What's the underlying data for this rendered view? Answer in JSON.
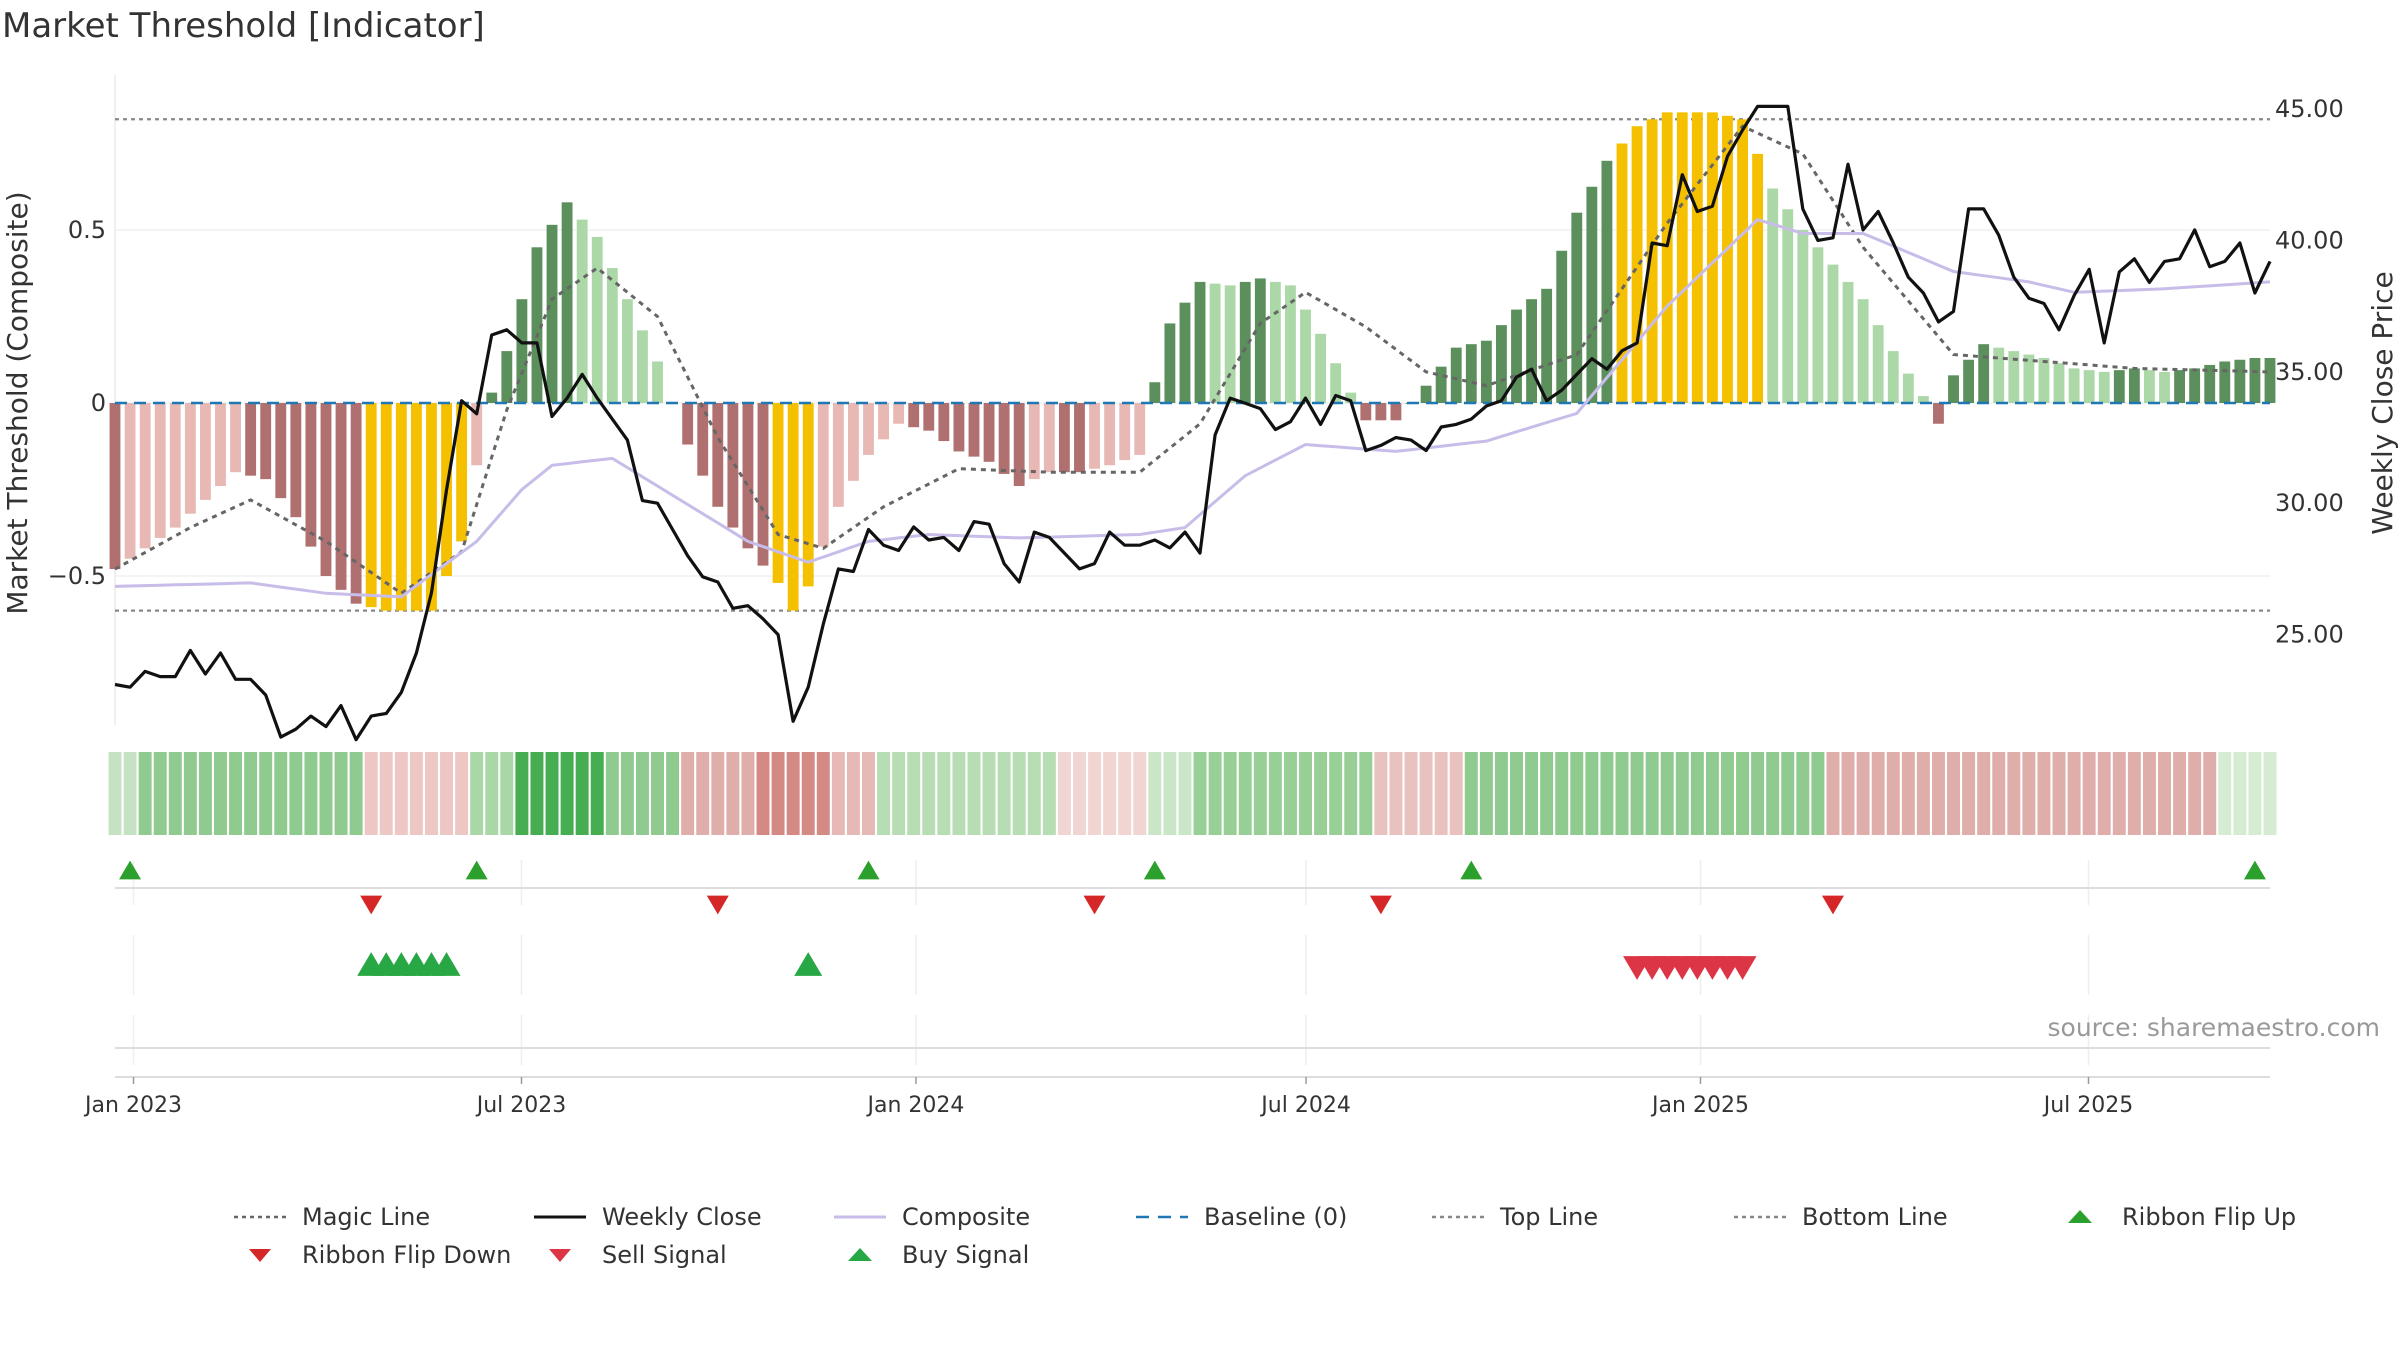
{
  "title": "Market Threshold [Indicator]",
  "source": "source: sharemaestro.com",
  "legend": [
    {
      "label": "Magic Line",
      "kind": "dotted-line",
      "color": "#666666"
    },
    {
      "label": "Weekly Close",
      "kind": "solid-line",
      "color": "#111111"
    },
    {
      "label": "Composite",
      "kind": "solid-line",
      "color": "#c8bde8"
    },
    {
      "label": "Baseline (0)",
      "kind": "dashed-line",
      "color": "#1f77b4"
    },
    {
      "label": "Top Line",
      "kind": "dotted-line",
      "color": "#888888"
    },
    {
      "label": "Bottom Line",
      "kind": "dotted-line",
      "color": "#888888"
    },
    {
      "label": "Ribbon Flip Up",
      "kind": "triangle-up",
      "color": "#2ca02c"
    },
    {
      "label": "Ribbon Flip Down",
      "kind": "triangle-down",
      "color": "#d62728"
    },
    {
      "label": "Sell Signal",
      "kind": "triangle-down",
      "color": "#dc3545"
    },
    {
      "label": "Buy Signal",
      "kind": "triangle-up",
      "color": "#28a745"
    }
  ],
  "colors": {
    "bull_dark": "#5b8f5b",
    "bull_light": "#acd8a8",
    "bear_dark": "#b07070",
    "bear_light": "#e8b9b4",
    "extreme": "#f5c000",
    "flip_up": "#2ca02c",
    "flip_down": "#d62728",
    "buy": "#28a745",
    "sell": "#dc3545",
    "weekly_close": "#111111",
    "composite": "#c8bde8",
    "magic": "#666666",
    "baseline": "#1f77b4"
  },
  "chart_data": {
    "type": "bar",
    "title": "Market Threshold [Indicator]",
    "ylabel_left": "Market Threshold (Composite)",
    "ylabel_right": "Weekly Close Price",
    "left_ylim": [
      -0.93,
      0.93
    ],
    "right_ylim": [
      21.0,
      46.5
    ],
    "left_ticks": [
      {
        "v": 0.5,
        "label": "0.5"
      },
      {
        "v": 0,
        "label": "0"
      },
      {
        "v": -0.5,
        "label": "−0.5"
      }
    ],
    "right_ticks": [
      {
        "v": 45,
        "label": "45.00"
      },
      {
        "v": 40,
        "label": "40.00"
      },
      {
        "v": 35,
        "label": "35.00"
      },
      {
        "v": 30,
        "label": "30.00"
      },
      {
        "v": 25,
        "label": "25.00"
      }
    ],
    "x_ticks": [
      {
        "date": "2023-01-01",
        "label": "Jan 2023"
      },
      {
        "date": "2023-07-01",
        "label": "Jul 2023"
      },
      {
        "date": "2024-01-01",
        "label": "Jan 2024"
      },
      {
        "date": "2024-07-01",
        "label": "Jul 2024"
      },
      {
        "date": "2025-01-01",
        "label": "Jan 2025"
      },
      {
        "date": "2025-07-01",
        "label": "Jul 2025"
      }
    ],
    "top_line": 0.82,
    "bottom_line": -0.6,
    "composite_bars_anchors": [
      [
        "2022-12-28",
        -0.48
      ],
      [
        "2023-01-11",
        -0.42
      ],
      [
        "2023-01-25",
        -0.36
      ],
      [
        "2023-02-08",
        -0.28
      ],
      [
        "2023-02-22",
        -0.2
      ],
      [
        "2023-03-08",
        -0.22
      ],
      [
        "2023-03-22",
        -0.33
      ],
      [
        "2023-04-05",
        -0.5
      ],
      [
        "2023-04-19",
        -0.58
      ],
      [
        "2023-05-03",
        -0.6
      ],
      [
        "2023-05-24",
        -0.6
      ],
      [
        "2023-06-07",
        -0.4
      ],
      [
        "2023-06-14",
        -0.18
      ],
      [
        "2023-06-21",
        0.03
      ],
      [
        "2023-06-28",
        0.15
      ],
      [
        "2023-07-12",
        0.45
      ],
      [
        "2023-07-26",
        0.58
      ],
      [
        "2023-08-09",
        0.48
      ],
      [
        "2023-08-23",
        0.3
      ],
      [
        "2023-09-06",
        0.12
      ],
      [
        "2023-09-13",
        0.0
      ],
      [
        "2023-09-20",
        -0.12
      ],
      [
        "2023-10-04",
        -0.3
      ],
      [
        "2023-10-18",
        -0.42
      ],
      [
        "2023-11-01",
        -0.52
      ],
      [
        "2023-11-08",
        -0.6
      ],
      [
        "2023-11-15",
        -0.53
      ],
      [
        "2023-11-29",
        -0.3
      ],
      [
        "2023-12-13",
        -0.15
      ],
      [
        "2023-12-27",
        -0.06
      ],
      [
        "2024-01-10",
        -0.08
      ],
      [
        "2024-01-24",
        -0.14
      ],
      [
        "2024-02-07",
        -0.17
      ],
      [
        "2024-02-21",
        -0.24
      ],
      [
        "2024-03-06",
        -0.2
      ],
      [
        "2024-03-20",
        -0.2
      ],
      [
        "2024-04-03",
        -0.18
      ],
      [
        "2024-04-17",
        -0.15
      ],
      [
        "2024-04-24",
        0.06
      ],
      [
        "2024-05-01",
        0.23
      ],
      [
        "2024-05-15",
        0.35
      ],
      [
        "2024-05-29",
        0.34
      ],
      [
        "2024-06-12",
        0.36
      ],
      [
        "2024-06-26",
        0.34
      ],
      [
        "2024-07-10",
        0.2
      ],
      [
        "2024-07-24",
        0.03
      ],
      [
        "2024-07-31",
        -0.05
      ],
      [
        "2024-08-14",
        -0.05
      ],
      [
        "2024-08-28",
        0.05
      ],
      [
        "2024-09-11",
        0.16
      ],
      [
        "2024-09-25",
        0.18
      ],
      [
        "2024-10-09",
        0.27
      ],
      [
        "2024-10-23",
        0.33
      ],
      [
        "2024-11-06",
        0.55
      ],
      [
        "2024-11-20",
        0.7
      ],
      [
        "2024-12-04",
        0.8
      ],
      [
        "2024-12-18",
        0.84
      ],
      [
        "2025-01-08",
        0.84
      ],
      [
        "2025-01-22",
        0.82
      ],
      [
        "2025-02-05",
        0.62
      ],
      [
        "2025-02-19",
        0.5
      ],
      [
        "2025-03-05",
        0.4
      ],
      [
        "2025-03-19",
        0.3
      ],
      [
        "2025-04-02",
        0.15
      ],
      [
        "2025-04-16",
        0.02
      ],
      [
        "2025-04-23",
        -0.06
      ],
      [
        "2025-04-30",
        0.08
      ],
      [
        "2025-05-14",
        0.17
      ],
      [
        "2025-05-28",
        0.15
      ],
      [
        "2025-06-11",
        0.13
      ],
      [
        "2025-06-25",
        0.1
      ],
      [
        "2025-07-09",
        0.09
      ],
      [
        "2025-07-23",
        0.1
      ],
      [
        "2025-08-06",
        0.09
      ],
      [
        "2025-08-20",
        0.1
      ],
      [
        "2025-09-03",
        0.12
      ],
      [
        "2025-09-17",
        0.13
      ]
    ],
    "extreme_segments": [
      [
        "2023-04-26",
        "2023-06-07"
      ],
      [
        "2023-11-01",
        "2023-11-15"
      ],
      [
        "2024-11-27",
        "2025-01-29"
      ]
    ],
    "weekly_close": [
      [
        "2022-12-28",
        23.1
      ],
      [
        "2023-01-04",
        23.0
      ],
      [
        "2023-01-11",
        23.6
      ],
      [
        "2023-01-18",
        23.4
      ],
      [
        "2023-01-25",
        23.4
      ],
      [
        "2023-02-01",
        24.4
      ],
      [
        "2023-02-08",
        23.5
      ],
      [
        "2023-02-15",
        24.3
      ],
      [
        "2023-02-22",
        23.3
      ],
      [
        "2023-03-01",
        23.3
      ],
      [
        "2023-03-08",
        22.7
      ],
      [
        "2023-03-15",
        21.1
      ],
      [
        "2023-03-22",
        21.4
      ],
      [
        "2023-03-29",
        21.9
      ],
      [
        "2023-04-05",
        21.5
      ],
      [
        "2023-04-12",
        22.3
      ],
      [
        "2023-04-19",
        21.0
      ],
      [
        "2023-04-26",
        21.9
      ],
      [
        "2023-05-03",
        22.0
      ],
      [
        "2023-05-10",
        22.8
      ],
      [
        "2023-05-17",
        24.3
      ],
      [
        "2023-05-24",
        26.6
      ],
      [
        "2023-05-31",
        30.5
      ],
      [
        "2023-06-07",
        33.9
      ],
      [
        "2023-06-14",
        33.4
      ],
      [
        "2023-06-21",
        36.4
      ],
      [
        "2023-06-28",
        36.6
      ],
      [
        "2023-07-05",
        36.1
      ],
      [
        "2023-07-12",
        36.1
      ],
      [
        "2023-07-19",
        33.3
      ],
      [
        "2023-07-26",
        34.0
      ],
      [
        "2023-08-02",
        34.9
      ],
      [
        "2023-08-09",
        34.0
      ],
      [
        "2023-08-16",
        33.2
      ],
      [
        "2023-08-23",
        32.4
      ],
      [
        "2023-08-30",
        30.1
      ],
      [
        "2023-09-06",
        30.0
      ],
      [
        "2023-09-13",
        29.0
      ],
      [
        "2023-09-20",
        28.0
      ],
      [
        "2023-09-27",
        27.2
      ],
      [
        "2023-10-04",
        27.0
      ],
      [
        "2023-10-11",
        26.0
      ],
      [
        "2023-10-18",
        26.1
      ],
      [
        "2023-10-25",
        25.6
      ],
      [
        "2023-11-01",
        25.0
      ],
      [
        "2023-11-08",
        21.7
      ],
      [
        "2023-11-15",
        23.0
      ],
      [
        "2023-11-22",
        25.4
      ],
      [
        "2023-11-29",
        27.5
      ],
      [
        "2023-12-06",
        27.4
      ],
      [
        "2023-12-13",
        29.0
      ],
      [
        "2023-12-20",
        28.4
      ],
      [
        "2023-12-27",
        28.2
      ],
      [
        "2024-01-03",
        29.1
      ],
      [
        "2024-01-10",
        28.6
      ],
      [
        "2024-01-17",
        28.7
      ],
      [
        "2024-01-24",
        28.2
      ],
      [
        "2024-01-31",
        29.3
      ],
      [
        "2024-02-07",
        29.2
      ],
      [
        "2024-02-14",
        27.7
      ],
      [
        "2024-02-21",
        27.0
      ],
      [
        "2024-02-28",
        28.9
      ],
      [
        "2024-03-06",
        28.7
      ],
      [
        "2024-03-13",
        28.1
      ],
      [
        "2024-03-20",
        27.5
      ],
      [
        "2024-03-27",
        27.7
      ],
      [
        "2024-04-03",
        28.9
      ],
      [
        "2024-04-10",
        28.4
      ],
      [
        "2024-04-17",
        28.4
      ],
      [
        "2024-04-24",
        28.6
      ],
      [
        "2024-05-01",
        28.3
      ],
      [
        "2024-05-08",
        28.9
      ],
      [
        "2024-05-15",
        28.1
      ],
      [
        "2024-05-22",
        32.6
      ],
      [
        "2024-05-29",
        34.0
      ],
      [
        "2024-06-05",
        33.8
      ],
      [
        "2024-06-12",
        33.6
      ],
      [
        "2024-06-19",
        32.8
      ],
      [
        "2024-06-26",
        33.1
      ],
      [
        "2024-07-03",
        34.0
      ],
      [
        "2024-07-10",
        33.0
      ],
      [
        "2024-07-17",
        34.1
      ],
      [
        "2024-07-24",
        33.9
      ],
      [
        "2024-07-31",
        32.0
      ],
      [
        "2024-08-07",
        32.2
      ],
      [
        "2024-08-14",
        32.5
      ],
      [
        "2024-08-21",
        32.4
      ],
      [
        "2024-08-28",
        32.0
      ],
      [
        "2024-09-04",
        32.9
      ],
      [
        "2024-09-11",
        33.0
      ],
      [
        "2024-09-18",
        33.2
      ],
      [
        "2024-09-25",
        33.7
      ],
      [
        "2024-10-02",
        33.9
      ],
      [
        "2024-10-09",
        34.8
      ],
      [
        "2024-10-16",
        35.1
      ],
      [
        "2024-10-23",
        33.9
      ],
      [
        "2024-10-30",
        34.3
      ],
      [
        "2024-11-06",
        34.9
      ],
      [
        "2024-11-13",
        35.5
      ],
      [
        "2024-11-20",
        35.1
      ],
      [
        "2024-11-27",
        35.8
      ],
      [
        "2024-12-04",
        36.1
      ],
      [
        "2024-12-11",
        39.9
      ],
      [
        "2024-12-18",
        39.8
      ],
      [
        "2024-12-25",
        42.5
      ],
      [
        "2025-01-01",
        41.1
      ],
      [
        "2025-01-08",
        41.3
      ],
      [
        "2025-01-15",
        43.2
      ],
      [
        "2025-01-22",
        44.2
      ],
      [
        "2025-01-29",
        45.1
      ],
      [
        "2025-02-05",
        45.1
      ],
      [
        "2025-02-12",
        45.1
      ],
      [
        "2025-02-19",
        41.2
      ],
      [
        "2025-02-26",
        40.0
      ],
      [
        "2025-03-05",
        40.1
      ],
      [
        "2025-03-12",
        42.9
      ],
      [
        "2025-03-19",
        40.4
      ],
      [
        "2025-03-26",
        41.1
      ],
      [
        "2025-04-02",
        39.9
      ],
      [
        "2025-04-09",
        38.6
      ],
      [
        "2025-04-16",
        38.0
      ],
      [
        "2025-04-23",
        36.9
      ],
      [
        "2025-04-30",
        37.3
      ],
      [
        "2025-05-07",
        41.2
      ],
      [
        "2025-05-14",
        41.2
      ],
      [
        "2025-05-21",
        40.2
      ],
      [
        "2025-05-28",
        38.6
      ],
      [
        "2025-06-04",
        37.8
      ],
      [
        "2025-06-11",
        37.6
      ],
      [
        "2025-06-18",
        36.6
      ],
      [
        "2025-06-25",
        37.9
      ],
      [
        "2025-07-02",
        38.9
      ],
      [
        "2025-07-09",
        36.1
      ],
      [
        "2025-07-16",
        38.8
      ],
      [
        "2025-07-23",
        39.3
      ],
      [
        "2025-07-30",
        38.4
      ],
      [
        "2025-08-06",
        39.2
      ],
      [
        "2025-08-13",
        39.3
      ],
      [
        "2025-08-20",
        40.4
      ],
      [
        "2025-08-27",
        39.0
      ],
      [
        "2025-09-03",
        39.2
      ],
      [
        "2025-09-10",
        39.9
      ],
      [
        "2025-09-17",
        38.0
      ],
      [
        "2025-09-24",
        39.2
      ]
    ],
    "composite_line": [
      [
        "2022-12-28",
        -0.53
      ],
      [
        "2023-03-01",
        -0.52
      ],
      [
        "2023-04-05",
        -0.55
      ],
      [
        "2023-05-10",
        -0.56
      ],
      [
        "2023-06-14",
        -0.4
      ],
      [
        "2023-07-05",
        -0.25
      ],
      [
        "2023-07-19",
        -0.18
      ],
      [
        "2023-08-16",
        -0.16
      ],
      [
        "2023-09-06",
        -0.24
      ],
      [
        "2023-10-18",
        -0.4
      ],
      [
        "2023-11-15",
        -0.46
      ],
      [
        "2023-12-13",
        -0.4
      ],
      [
        "2024-01-10",
        -0.38
      ],
      [
        "2024-02-21",
        -0.39
      ],
      [
        "2024-04-17",
        -0.38
      ],
      [
        "2024-05-08",
        -0.36
      ],
      [
        "2024-06-05",
        -0.21
      ],
      [
        "2024-07-03",
        -0.12
      ],
      [
        "2024-08-14",
        -0.14
      ],
      [
        "2024-09-25",
        -0.11
      ],
      [
        "2024-11-06",
        -0.03
      ],
      [
        "2024-12-18",
        0.28
      ],
      [
        "2025-01-29",
        0.53
      ],
      [
        "2025-02-19",
        0.49
      ],
      [
        "2025-03-19",
        0.49
      ],
      [
        "2025-04-30",
        0.38
      ],
      [
        "2025-06-04",
        0.35
      ],
      [
        "2025-06-25",
        0.32
      ],
      [
        "2025-08-06",
        0.33
      ],
      [
        "2025-09-24",
        0.35
      ]
    ],
    "magic_line": [
      [
        "2022-12-28",
        -0.48
      ],
      [
        "2023-02-01",
        -0.36
      ],
      [
        "2023-03-01",
        -0.28
      ],
      [
        "2023-04-05",
        -0.4
      ],
      [
        "2023-05-10",
        -0.55
      ],
      [
        "2023-06-07",
        -0.43
      ],
      [
        "2023-06-28",
        -0.02
      ],
      [
        "2023-07-19",
        0.3
      ],
      [
        "2023-08-09",
        0.39
      ],
      [
        "2023-09-06",
        0.25
      ],
      [
        "2023-10-04",
        -0.1
      ],
      [
        "2023-11-01",
        -0.38
      ],
      [
        "2023-11-22",
        -0.42
      ],
      [
        "2023-12-20",
        -0.3
      ],
      [
        "2024-01-24",
        -0.19
      ],
      [
        "2024-03-06",
        -0.2
      ],
      [
        "2024-04-17",
        -0.2
      ],
      [
        "2024-05-15",
        -0.06
      ],
      [
        "2024-06-12",
        0.23
      ],
      [
        "2024-07-03",
        0.32
      ],
      [
        "2024-07-31",
        0.22
      ],
      [
        "2024-08-28",
        0.09
      ],
      [
        "2024-09-25",
        0.05
      ],
      [
        "2024-11-06",
        0.14
      ],
      [
        "2024-12-18",
        0.52
      ],
      [
        "2025-01-22",
        0.8
      ],
      [
        "2025-02-19",
        0.72
      ],
      [
        "2025-03-19",
        0.45
      ],
      [
        "2025-04-30",
        0.14
      ],
      [
        "2025-06-11",
        0.12
      ],
      [
        "2025-07-23",
        0.1
      ],
      [
        "2025-09-24",
        0.09
      ]
    ],
    "ribbon_segments": [
      [
        "2022-12-28",
        "2023-01-04",
        "#c5e3c2"
      ],
      [
        "2023-01-11",
        "2023-04-19",
        "#8fca8e"
      ],
      [
        "2023-04-26",
        "2023-06-07",
        "#ecc7c4"
      ],
      [
        "2023-06-14",
        "2023-06-28",
        "#a9d7a6"
      ],
      [
        "2023-07-05",
        "2023-08-09",
        "#47ad53"
      ],
      [
        "2023-08-16",
        "2023-09-13",
        "#8fca8e"
      ],
      [
        "2023-09-20",
        "2023-10-18",
        "#e0aeaa"
      ],
      [
        "2023-10-25",
        "2023-11-22",
        "#d48985"
      ],
      [
        "2023-11-29",
        "2023-12-13",
        "#e6b9b6"
      ],
      [
        "2023-12-20",
        "2024-03-06",
        "#b7ddb4"
      ],
      [
        "2024-03-13",
        "2024-04-17",
        "#f1d5d3"
      ],
      [
        "2024-04-24",
        "2024-05-08",
        "#c9e6c6"
      ],
      [
        "2024-05-15",
        "2024-07-31",
        "#98cf96"
      ],
      [
        "2024-08-07",
        "2024-09-11",
        "#e9c1be"
      ],
      [
        "2024-09-18",
        "2025-02-26",
        "#8fca8e"
      ],
      [
        "2025-03-05",
        "2025-08-27",
        "#dfaeaa"
      ],
      [
        "2025-09-03",
        "2025-09-24",
        "#d5ecd2"
      ]
    ],
    "ribbon_flip_up": [
      "2023-01-04",
      "2023-06-14",
      "2023-12-13",
      "2024-04-24",
      "2024-09-18",
      "2025-09-17"
    ],
    "ribbon_flip_down": [
      "2023-04-26",
      "2023-10-04",
      "2024-03-27",
      "2024-08-07",
      "2025-03-05"
    ],
    "buy_signals": [
      "2023-04-26",
      "2023-05-03",
      "2023-05-10",
      "2023-05-17",
      "2023-05-24",
      "2023-05-31",
      "2023-11-15"
    ],
    "sell_signals": [
      "2024-12-04",
      "2024-12-11",
      "2024-12-18",
      "2024-12-25",
      "2025-01-01",
      "2025-01-08",
      "2025-01-15",
      "2025-01-22"
    ]
  }
}
